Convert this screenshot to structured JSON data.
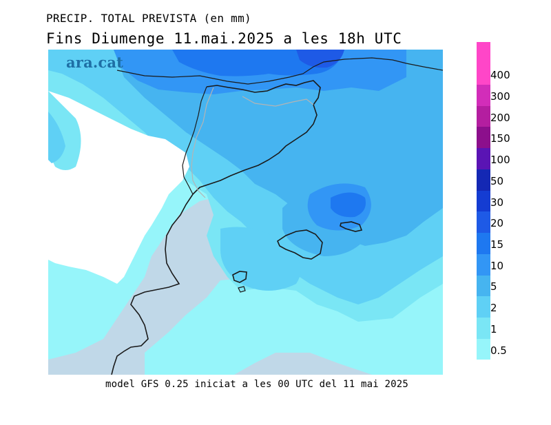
{
  "header": {
    "title": "PRECIP. TOTAL PREVISTA (en mm)",
    "subtitle": "Fins Diumenge 11.mai.2025 a les 18h UTC"
  },
  "footer": {
    "model_info": "model GFS 0.25 iniciat a les 00 UTC del 11 mai 2025"
  },
  "logo": {
    "text": "ara.cat"
  },
  "legend": {
    "levels": [
      {
        "label": "0.5",
        "color": "#96f5fa"
      },
      {
        "label": "1",
        "color": "#7ae6f5"
      },
      {
        "label": "2",
        "color": "#5fd0f5"
      },
      {
        "label": "5",
        "color": "#46b4f0"
      },
      {
        "label": "10",
        "color": "#3296f5"
      },
      {
        "label": "15",
        "color": "#1e78f0"
      },
      {
        "label": "20",
        "color": "#1e5ae6"
      },
      {
        "label": "30",
        "color": "#143cd2"
      },
      {
        "label": "50",
        "color": "#1428b4"
      },
      {
        "label": "100",
        "color": "#5a14b4"
      },
      {
        "label": "150",
        "color": "#8c0f8c"
      },
      {
        "label": "200",
        "color": "#b41ea0"
      },
      {
        "label": "300",
        "color": "#d22db9"
      },
      {
        "label": "400",
        "color": "#ff46c8"
      }
    ],
    "top_color": "#ff46c8"
  },
  "map_colors": {
    "no_precip": "#c0d8e8",
    "land_dry": "#ffffff",
    "coast": "#1a1a1a",
    "border": "#b4b4b4"
  }
}
